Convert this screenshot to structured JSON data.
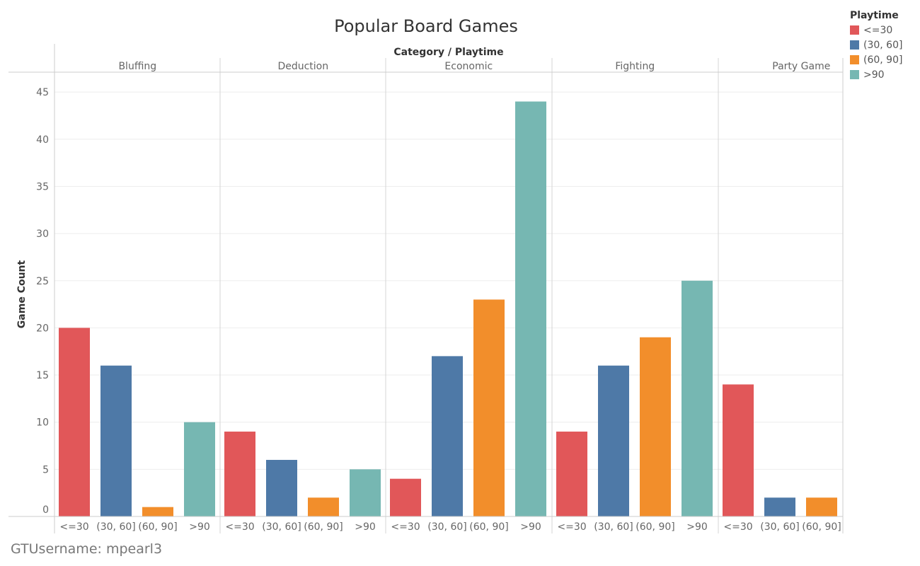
{
  "colors": {
    "<=30": "#E15759",
    "(30, 60]": "#4E79A7",
    "(60, 90]": "#F28E2B",
    ">90": "#76B7B2"
  },
  "legend": {
    "title": "Playtime",
    "items": [
      {
        "label": "<=30",
        "color": "#E15759"
      },
      {
        "label": "(30, 60]",
        "color": "#4E79A7"
      },
      {
        "label": "(60, 90]",
        "color": "#F28E2B"
      },
      {
        "label": ">90",
        "color": "#76B7B2"
      }
    ]
  },
  "footer": "GTUsername: mpearl3",
  "chart_data": {
    "type": "bar",
    "title": "Popular Board Games",
    "header": "Category / Playtime",
    "ylabel": "Game Count",
    "ylim": [
      0,
      45
    ],
    "yticks": [
      0,
      5,
      10,
      15,
      20,
      25,
      30,
      35,
      40,
      45
    ],
    "grid": true,
    "legend_position": "top-right",
    "groups": [
      {
        "name": "Bluffing",
        "bars": [
          {
            "playtime": "<=30",
            "value": 20
          },
          {
            "playtime": "(30, 60]",
            "value": 16
          },
          {
            "playtime": "(60, 90]",
            "value": 1
          },
          {
            "playtime": ">90",
            "value": 10
          }
        ]
      },
      {
        "name": "Deduction",
        "bars": [
          {
            "playtime": "<=30",
            "value": 9
          },
          {
            "playtime": "(30, 60]",
            "value": 6
          },
          {
            "playtime": "(60, 90]",
            "value": 2
          },
          {
            "playtime": ">90",
            "value": 5
          }
        ]
      },
      {
        "name": "Economic",
        "bars": [
          {
            "playtime": "<=30",
            "value": 4
          },
          {
            "playtime": "(30, 60]",
            "value": 17
          },
          {
            "playtime": "(60, 90]",
            "value": 23
          },
          {
            "playtime": ">90",
            "value": 44
          }
        ]
      },
      {
        "name": "Fighting",
        "bars": [
          {
            "playtime": "<=30",
            "value": 9
          },
          {
            "playtime": "(30, 60]",
            "value": 16
          },
          {
            "playtime": "(60, 90]",
            "value": 19
          },
          {
            "playtime": ">90",
            "value": 25
          }
        ]
      },
      {
        "name": "Party Game",
        "bars": [
          {
            "playtime": "<=30",
            "value": 14
          },
          {
            "playtime": "(30, 60]",
            "value": 2
          },
          {
            "playtime": "(60, 90]",
            "value": 2
          }
        ]
      }
    ]
  }
}
